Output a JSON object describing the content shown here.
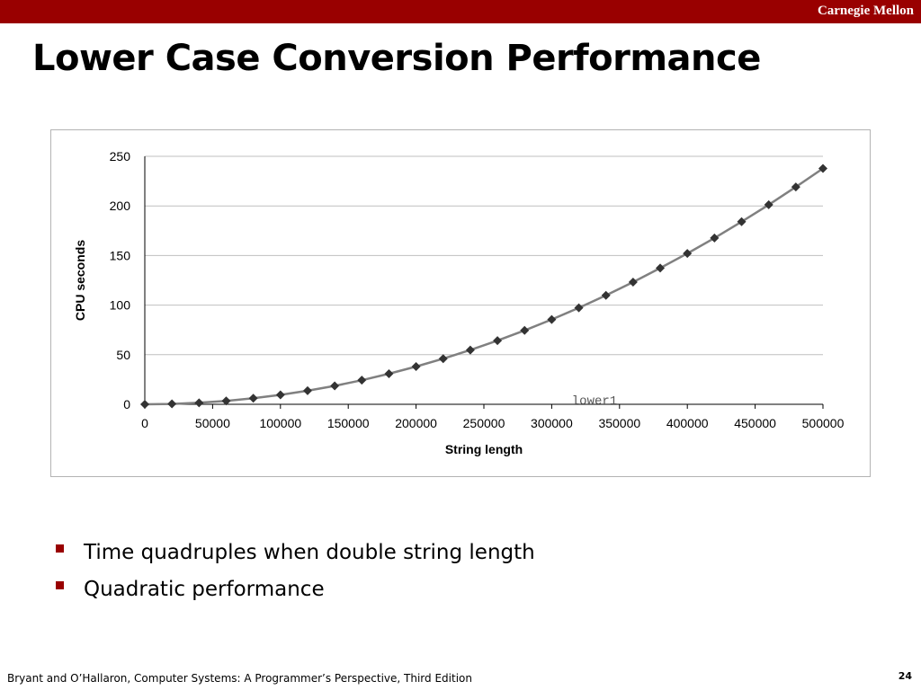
{
  "header": {
    "brand": "Carnegie Mellon"
  },
  "slide": {
    "title": "Lower Case Conversion Performance"
  },
  "bullets": [
    "Time quadruples when double string length",
    "Quadratic performance"
  ],
  "footer": {
    "credit": "Bryant and O’Hallaron, Computer Systems: A Programmer’s Perspective, Third Edition",
    "page_number": "24"
  },
  "colors": {
    "brand_red": "#990000",
    "series_line": "#808080",
    "marker": "#333333",
    "grid": "#bfbfbf"
  },
  "chart_data": {
    "type": "line",
    "title": "",
    "xlabel": "String length",
    "ylabel": "CPU seconds",
    "xlim": [
      0,
      500000
    ],
    "ylim": [
      0,
      250
    ],
    "xticks": [
      0,
      50000,
      100000,
      150000,
      200000,
      250000,
      300000,
      350000,
      400000,
      450000,
      500000
    ],
    "yticks": [
      0,
      50,
      100,
      150,
      200,
      250
    ],
    "grid": true,
    "legend": "lower-center",
    "series": [
      {
        "name": "lower1",
        "marker": "diamond",
        "x": [
          0,
          20000,
          40000,
          60000,
          80000,
          100000,
          120000,
          140000,
          160000,
          180000,
          200000,
          220000,
          240000,
          260000,
          280000,
          300000,
          320000,
          340000,
          360000,
          380000,
          400000,
          420000,
          440000,
          460000,
          480000,
          500000
        ],
        "values": [
          0,
          0.4,
          1.5,
          3.4,
          6.1,
          9.5,
          13.7,
          18.6,
          24.3,
          30.8,
          38.0,
          46.0,
          54.7,
          64.2,
          74.5,
          85.5,
          97.3,
          109.8,
          123.2,
          137.3,
          152.1,
          167.7,
          184.1,
          201.2,
          219.1,
          237.8
        ]
      }
    ]
  }
}
